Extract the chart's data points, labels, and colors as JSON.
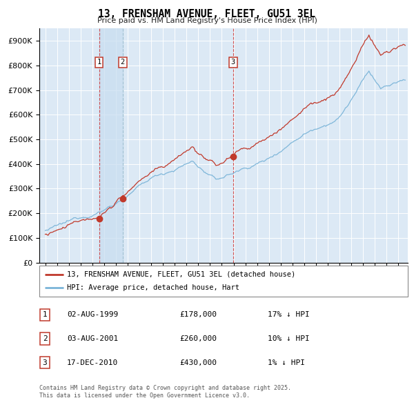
{
  "title": "13, FRENSHAM AVENUE, FLEET, GU51 3EL",
  "subtitle": "Price paid vs. HM Land Registry's House Price Index (HPI)",
  "legend_line1": "13, FRENSHAM AVENUE, FLEET, GU51 3EL (detached house)",
  "legend_line2": "HPI: Average price, detached house, Hart",
  "sales": [
    {
      "label": "1",
      "date_num": 1999.58,
      "price": 178000
    },
    {
      "label": "2",
      "date_num": 2001.58,
      "price": 260000
    },
    {
      "label": "3",
      "date_num": 2010.96,
      "price": 430000
    }
  ],
  "sale_annotations": [
    {
      "num": "1",
      "date": "02-AUG-1999",
      "price": "£178,000",
      "pct": "17% ↓ HPI"
    },
    {
      "num": "2",
      "date": "03-AUG-2001",
      "price": "£260,000",
      "pct": "10% ↓ HPI"
    },
    {
      "num": "3",
      "date": "17-DEC-2010",
      "price": "£430,000",
      "pct": "1% ↓ HPI"
    }
  ],
  "hpi_color": "#7ab4d8",
  "property_color": "#c0392b",
  "vline1_color": "#cc3333",
  "vline2_color": "#aabbcc",
  "plot_bg_color": "#dce9f5",
  "span_color": "#c8ddf0",
  "ylim": [
    0,
    950000
  ],
  "xlim_start": 1994.5,
  "xlim_end": 2025.8,
  "footnote1": "Contains HM Land Registry data © Crown copyright and database right 2025.",
  "footnote2": "This data is licensed under the Open Government Licence v3.0."
}
